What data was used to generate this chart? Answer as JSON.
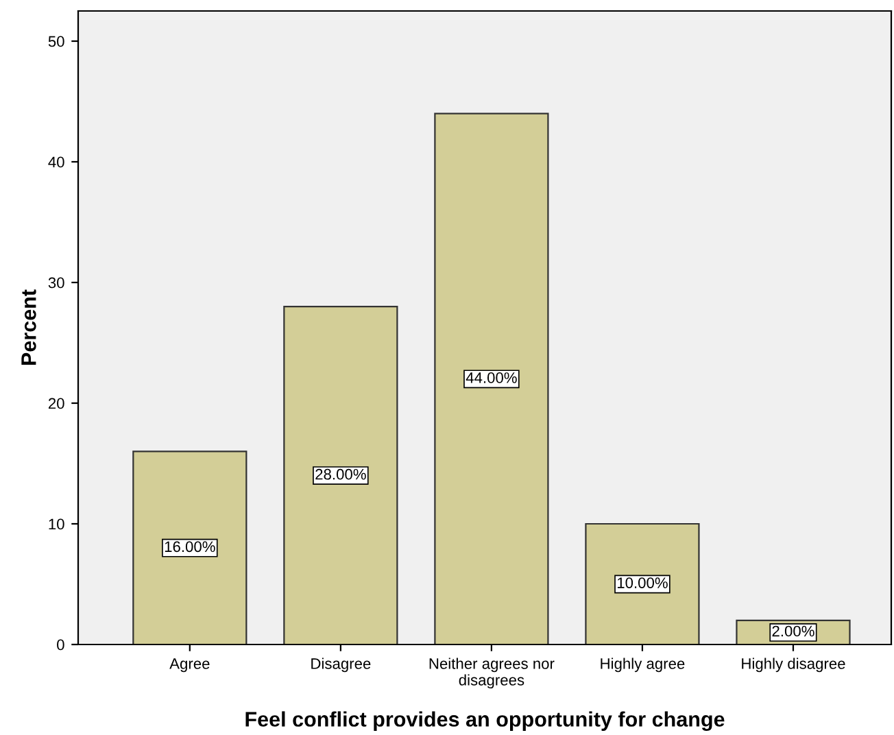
{
  "chart_data": {
    "type": "bar",
    "xlabel": "Feel conflict provides an opportunity for change",
    "ylabel": "Percent",
    "categories": [
      "Agree",
      "Disagree",
      "Neither agrees nor\ndisagrees",
      "Highly agree",
      "Highly disagree"
    ],
    "values": [
      16,
      28,
      44,
      10,
      2
    ],
    "value_labels": [
      "16.00%",
      "28.00%",
      "44.00%",
      "10.00%",
      "2.00%"
    ],
    "color": "#d3ce97",
    "ylim": [
      0,
      52.5
    ],
    "yticks": [
      0,
      10,
      20,
      30,
      40,
      50
    ],
    "grid": false
  }
}
